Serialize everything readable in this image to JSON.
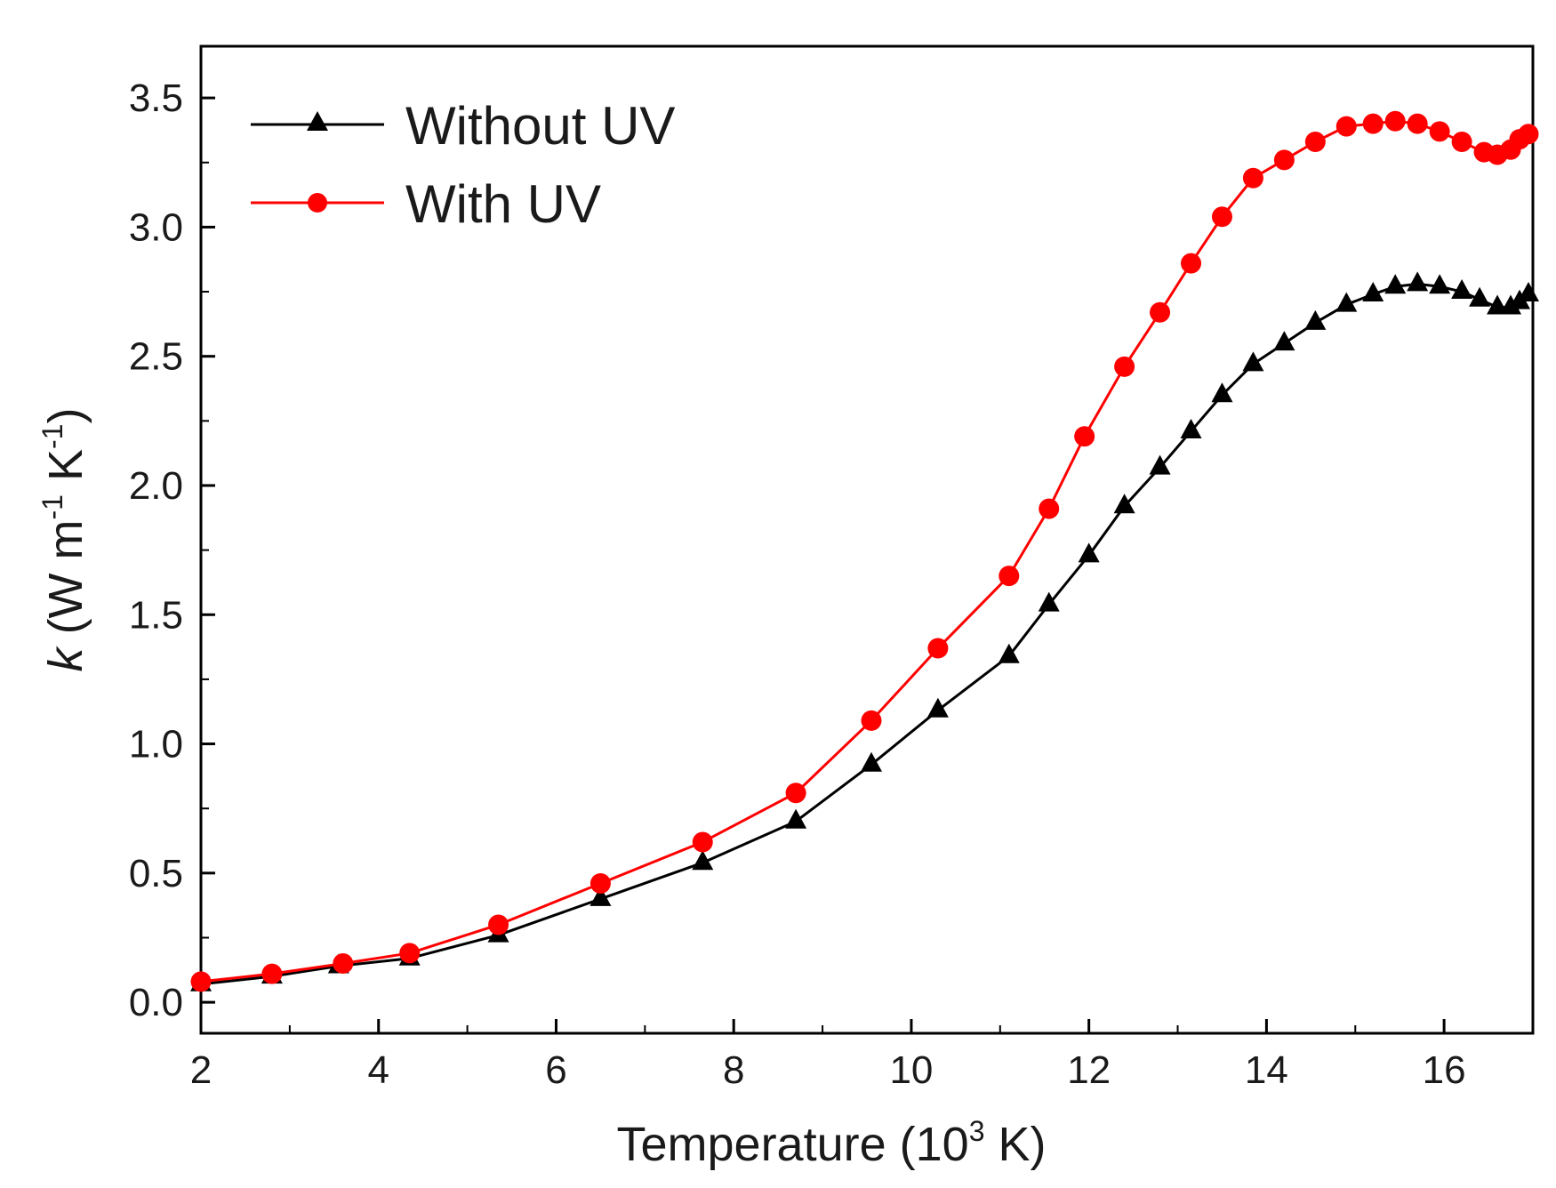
{
  "chart_data": {
    "type": "line",
    "title": "",
    "xlabel": "Temperature (10",
    "xlabel_sup": "3",
    "xlabel_tail": " K)",
    "ylabel_var": "k",
    "ylabel_main": " (W m",
    "ylabel_sup1": "-1",
    "ylabel_mid": " K",
    "ylabel_sup2": "-1",
    "ylabel_tail": ")",
    "xlim": [
      2,
      17
    ],
    "ylim": [
      -0.12,
      3.7
    ],
    "xticks": [
      2,
      4,
      6,
      8,
      10,
      12,
      14,
      16
    ],
    "xtick_labels": [
      "2",
      "4",
      "6",
      "8",
      "10",
      "12",
      "14",
      "16"
    ],
    "yticks": [
      0.0,
      0.5,
      1.0,
      1.5,
      2.0,
      2.5,
      3.0,
      3.5
    ],
    "ytick_labels": [
      "0.0",
      "0.5",
      "1.0",
      "1.5",
      "2.0",
      "2.5",
      "3.0",
      "3.5"
    ],
    "legend_position": "top-left",
    "series": [
      {
        "name": "Without UV",
        "color": "#000000",
        "marker": "triangle",
        "x": [
          2.0,
          2.8,
          3.55,
          4.35,
          5.35,
          6.5,
          7.65,
          8.7,
          9.55,
          10.3,
          11.1,
          11.55,
          12.0,
          12.4,
          12.8,
          13.15,
          13.5,
          13.85,
          14.2,
          14.55,
          14.9,
          15.2,
          15.45,
          15.7,
          15.95,
          16.2,
          16.4,
          16.6,
          16.75,
          16.85,
          16.95
        ],
        "values": [
          0.07,
          0.1,
          0.14,
          0.17,
          0.26,
          0.4,
          0.54,
          0.7,
          0.92,
          1.13,
          1.34,
          1.54,
          1.73,
          1.92,
          2.07,
          2.21,
          2.35,
          2.47,
          2.55,
          2.63,
          2.7,
          2.74,
          2.77,
          2.78,
          2.77,
          2.75,
          2.72,
          2.69,
          2.69,
          2.71,
          2.74
        ]
      },
      {
        "name": "With UV",
        "color": "#ff0000",
        "marker": "circle",
        "x": [
          2.0,
          2.8,
          3.6,
          4.35,
          5.35,
          6.5,
          7.65,
          8.7,
          9.55,
          10.3,
          11.1,
          11.55,
          11.95,
          12.4,
          12.8,
          13.15,
          13.5,
          13.85,
          14.2,
          14.55,
          14.9,
          15.2,
          15.45,
          15.7,
          15.95,
          16.2,
          16.45,
          16.6,
          16.75,
          16.85,
          16.95
        ],
        "values": [
          0.08,
          0.11,
          0.15,
          0.19,
          0.3,
          0.46,
          0.62,
          0.81,
          1.09,
          1.37,
          1.65,
          1.91,
          2.19,
          2.46,
          2.67,
          2.86,
          3.04,
          3.19,
          3.26,
          3.33,
          3.39,
          3.4,
          3.41,
          3.4,
          3.37,
          3.33,
          3.29,
          3.28,
          3.3,
          3.34,
          3.36
        ]
      }
    ]
  }
}
